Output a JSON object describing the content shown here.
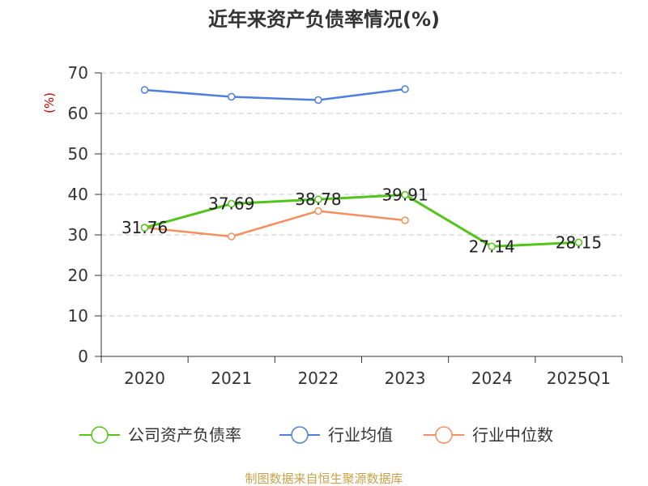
{
  "colors": {
    "company": "#52c41a",
    "industry_avg": "#4f7fdb",
    "industry_median": "#f4905f",
    "unit_label": "#cc0000",
    "source": "#c8a24a"
  },
  "chart_data": {
    "type": "line",
    "title": "近年来资产负债率情况(%)",
    "ylabel": "(%)",
    "categories": [
      "2020",
      "2021",
      "2022",
      "2023",
      "2024",
      "2025Q1"
    ],
    "ylim": [
      0,
      70
    ],
    "yticks": [
      0,
      10,
      20,
      30,
      40,
      50,
      60,
      70
    ],
    "grid": true,
    "legend_position": "bottom",
    "series": [
      {
        "name": "公司资产负债率",
        "color_key": "company",
        "values": [
          31.76,
          37.69,
          38.78,
          39.91,
          27.14,
          28.15
        ],
        "labels": [
          "31.76",
          "37.69",
          "38.78",
          "39.91",
          "27.14",
          "28.15"
        ],
        "show_labels": true
      },
      {
        "name": "行业均值",
        "color_key": "industry_avg",
        "values": [
          65.8,
          64.1,
          63.3,
          66.0,
          null,
          null
        ],
        "show_labels": false
      },
      {
        "name": "行业中位数",
        "color_key": "industry_median",
        "values": [
          31.8,
          29.6,
          35.9,
          33.6,
          null,
          null
        ],
        "show_labels": false
      }
    ]
  },
  "footer": {
    "source": "制图数据来自恒生聚源数据库"
  }
}
